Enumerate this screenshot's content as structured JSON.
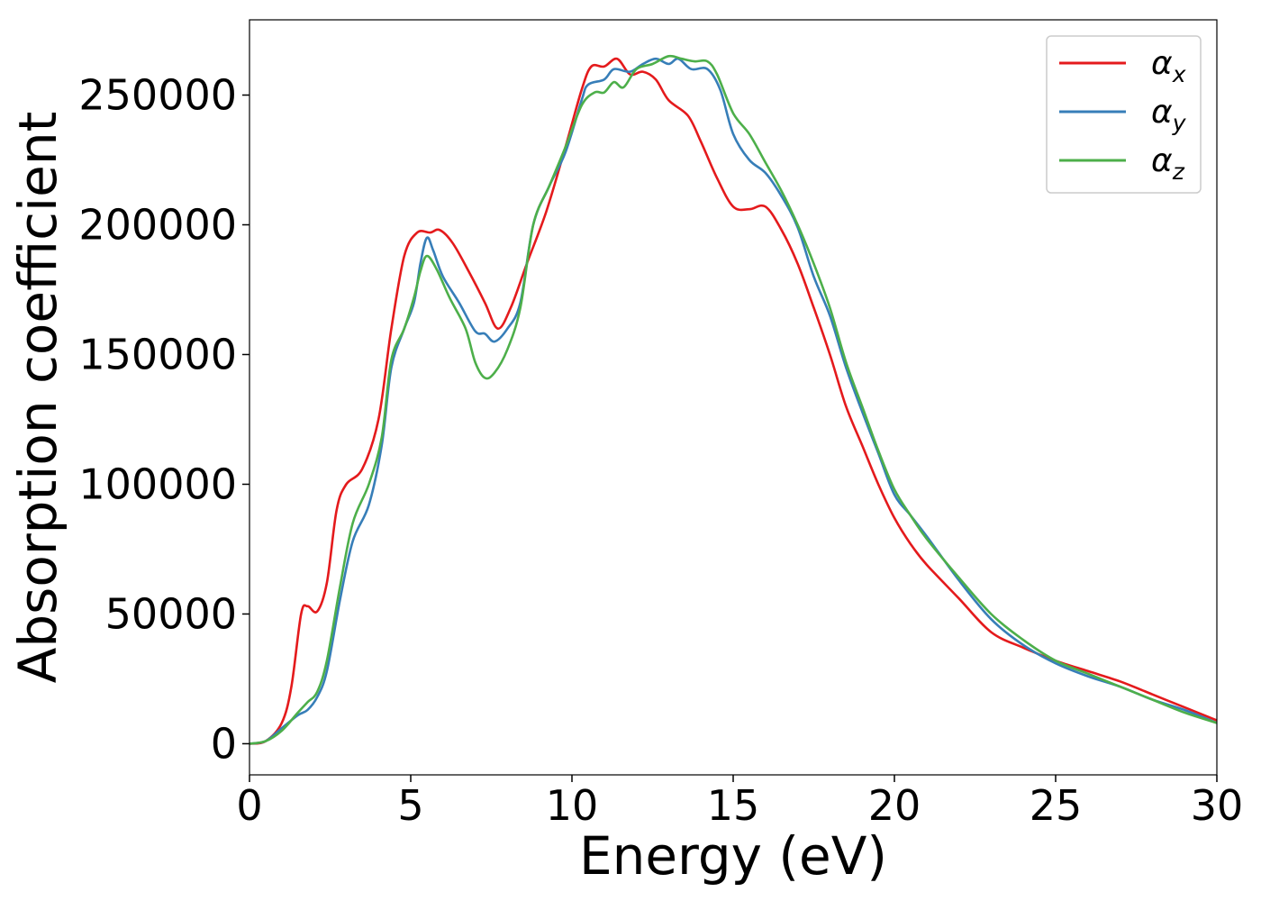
{
  "chart_data": {
    "type": "line",
    "xlabel": "Energy (eV)",
    "ylabel": "Absorption coefficient",
    "xlim": [
      0,
      30
    ],
    "ylim": [
      -12000,
      279000
    ],
    "xticks": [
      0,
      5,
      10,
      15,
      20,
      25,
      30
    ],
    "yticks": [
      0,
      50000,
      100000,
      150000,
      200000,
      250000
    ],
    "grid": false,
    "legend_placement": "top-right",
    "series": [
      {
        "name": "αx",
        "legend_base": "α",
        "legend_sub": "x",
        "color": "#e41a1c",
        "points": [
          [
            0,
            0
          ],
          [
            0.5,
            1000
          ],
          [
            1,
            8000
          ],
          [
            1.3,
            22000
          ],
          [
            1.6,
            50000
          ],
          [
            1.8,
            53000
          ],
          [
            2.1,
            51000
          ],
          [
            2.4,
            62000
          ],
          [
            2.7,
            90000
          ],
          [
            3,
            100000
          ],
          [
            3.5,
            106000
          ],
          [
            4,
            125000
          ],
          [
            4.4,
            160000
          ],
          [
            4.8,
            188000
          ],
          [
            5.2,
            197000
          ],
          [
            5.6,
            197000
          ],
          [
            5.9,
            198000
          ],
          [
            6.3,
            193000
          ],
          [
            6.8,
            182000
          ],
          [
            7.3,
            170000
          ],
          [
            7.7,
            160000
          ],
          [
            8.1,
            168000
          ],
          [
            8.6,
            185000
          ],
          [
            9.2,
            205000
          ],
          [
            9.8,
            230000
          ],
          [
            10.3,
            252000
          ],
          [
            10.6,
            261000
          ],
          [
            11.0,
            261000
          ],
          [
            11.4,
            264000
          ],
          [
            11.8,
            258000
          ],
          [
            12.2,
            259000
          ],
          [
            12.6,
            256000
          ],
          [
            13.0,
            248000
          ],
          [
            13.6,
            242000
          ],
          [
            14.0,
            232000
          ],
          [
            14.5,
            218000
          ],
          [
            15.0,
            207000
          ],
          [
            15.5,
            206000
          ],
          [
            16.0,
            207000
          ],
          [
            16.5,
            198000
          ],
          [
            17.0,
            185000
          ],
          [
            17.5,
            168000
          ],
          [
            18.0,
            150000
          ],
          [
            18.5,
            130000
          ],
          [
            19.0,
            115000
          ],
          [
            19.5,
            100000
          ],
          [
            20.0,
            87000
          ],
          [
            20.5,
            77000
          ],
          [
            21.0,
            69000
          ],
          [
            22.0,
            56000
          ],
          [
            23.0,
            43000
          ],
          [
            24.0,
            37000
          ],
          [
            25.0,
            32000
          ],
          [
            26.0,
            28000
          ],
          [
            27.0,
            24000
          ],
          [
            28.0,
            19000
          ],
          [
            29.0,
            14000
          ],
          [
            30.0,
            9000
          ]
        ]
      },
      {
        "name": "αy",
        "legend_base": "α",
        "legend_sub": "y",
        "color": "#377eb8",
        "points": [
          [
            0,
            0
          ],
          [
            0.5,
            1000
          ],
          [
            1,
            6000
          ],
          [
            1.5,
            11000
          ],
          [
            1.8,
            13000
          ],
          [
            2.1,
            18000
          ],
          [
            2.4,
            28000
          ],
          [
            2.8,
            55000
          ],
          [
            3.2,
            78000
          ],
          [
            3.7,
            92000
          ],
          [
            4.1,
            115000
          ],
          [
            4.4,
            145000
          ],
          [
            4.8,
            160000
          ],
          [
            5.1,
            170000
          ],
          [
            5.3,
            185000
          ],
          [
            5.5,
            195000
          ],
          [
            5.7,
            190000
          ],
          [
            6.0,
            180000
          ],
          [
            6.5,
            170000
          ],
          [
            7.0,
            159000
          ],
          [
            7.3,
            158000
          ],
          [
            7.6,
            155000
          ],
          [
            8.0,
            160000
          ],
          [
            8.4,
            170000
          ],
          [
            8.8,
            200000
          ],
          [
            9.3,
            215000
          ],
          [
            9.8,
            228000
          ],
          [
            10.3,
            248000
          ],
          [
            10.5,
            254000
          ],
          [
            11.0,
            256000
          ],
          [
            11.3,
            260000
          ],
          [
            11.8,
            259000
          ],
          [
            12.2,
            262000
          ],
          [
            12.6,
            264000
          ],
          [
            13.0,
            262000
          ],
          [
            13.3,
            264000
          ],
          [
            13.7,
            260000
          ],
          [
            14.2,
            260000
          ],
          [
            14.6,
            252000
          ],
          [
            15.0,
            235000
          ],
          [
            15.5,
            225000
          ],
          [
            16.0,
            220000
          ],
          [
            16.5,
            211000
          ],
          [
            17.0,
            199000
          ],
          [
            17.5,
            180000
          ],
          [
            18.0,
            165000
          ],
          [
            18.5,
            145000
          ],
          [
            19.0,
            128000
          ],
          [
            19.5,
            112000
          ],
          [
            20.0,
            96000
          ],
          [
            20.5,
            88000
          ],
          [
            21.0,
            80000
          ],
          [
            22.0,
            63000
          ],
          [
            23.0,
            48000
          ],
          [
            24.0,
            38000
          ],
          [
            25.0,
            31000
          ],
          [
            26.0,
            26000
          ],
          [
            27.0,
            22000
          ],
          [
            28.0,
            17000
          ],
          [
            29.0,
            13000
          ],
          [
            30.0,
            8000
          ]
        ]
      },
      {
        "name": "αz",
        "legend_base": "α",
        "legend_sub": "z",
        "color": "#4daf4a",
        "points": [
          [
            0,
            0
          ],
          [
            0.5,
            1000
          ],
          [
            1,
            5000
          ],
          [
            1.5,
            12000
          ],
          [
            1.8,
            16000
          ],
          [
            2.1,
            20000
          ],
          [
            2.4,
            32000
          ],
          [
            2.8,
            60000
          ],
          [
            3.2,
            85000
          ],
          [
            3.7,
            100000
          ],
          [
            4.1,
            118000
          ],
          [
            4.4,
            148000
          ],
          [
            4.8,
            160000
          ],
          [
            5.1,
            172000
          ],
          [
            5.3,
            182000
          ],
          [
            5.5,
            188000
          ],
          [
            5.8,
            183000
          ],
          [
            6.2,
            172000
          ],
          [
            6.7,
            160000
          ],
          [
            7.0,
            147000
          ],
          [
            7.3,
            141000
          ],
          [
            7.6,
            143000
          ],
          [
            8.0,
            152000
          ],
          [
            8.4,
            168000
          ],
          [
            8.8,
            200000
          ],
          [
            9.3,
            215000
          ],
          [
            9.8,
            230000
          ],
          [
            10.3,
            246000
          ],
          [
            10.7,
            251000
          ],
          [
            11.0,
            251000
          ],
          [
            11.3,
            255000
          ],
          [
            11.6,
            253000
          ],
          [
            12.0,
            260000
          ],
          [
            12.5,
            262000
          ],
          [
            13.0,
            265000
          ],
          [
            13.4,
            264000
          ],
          [
            13.8,
            263000
          ],
          [
            14.2,
            263000
          ],
          [
            14.5,
            258000
          ],
          [
            15.0,
            243000
          ],
          [
            15.5,
            235000
          ],
          [
            16.0,
            224000
          ],
          [
            16.5,
            213000
          ],
          [
            17.0,
            200000
          ],
          [
            17.5,
            185000
          ],
          [
            18.0,
            168000
          ],
          [
            18.5,
            147000
          ],
          [
            19.0,
            130000
          ],
          [
            19.5,
            113000
          ],
          [
            20.0,
            98000
          ],
          [
            20.5,
            88000
          ],
          [
            21.0,
            79000
          ],
          [
            22.0,
            64000
          ],
          [
            23.0,
            50000
          ],
          [
            24.0,
            40000
          ],
          [
            25.0,
            32000
          ],
          [
            26.0,
            27000
          ],
          [
            27.0,
            22000
          ],
          [
            28.0,
            17000
          ],
          [
            29.0,
            12000
          ],
          [
            30.0,
            8000
          ]
        ]
      }
    ]
  }
}
